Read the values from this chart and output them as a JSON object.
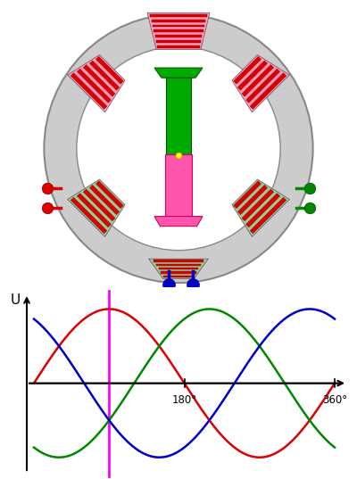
{
  "bg_color": "#ffffff",
  "stator_color": "#cccccc",
  "stator_edge": "#888888",
  "rotor_green": "#00aa00",
  "rotor_pink": "#ff55aa",
  "coil_red": "#dd0000",
  "coil_red_edge": "#880000",
  "coil_pink_bg": "#ff99bb",
  "coil_green_bg": "#99cc99",
  "yellow": "#ffff00",
  "phase_colors": [
    "#dd0000",
    "#008800",
    "#0000cc"
  ],
  "magenta": "#ff00ff",
  "gray_axis": "#999999"
}
